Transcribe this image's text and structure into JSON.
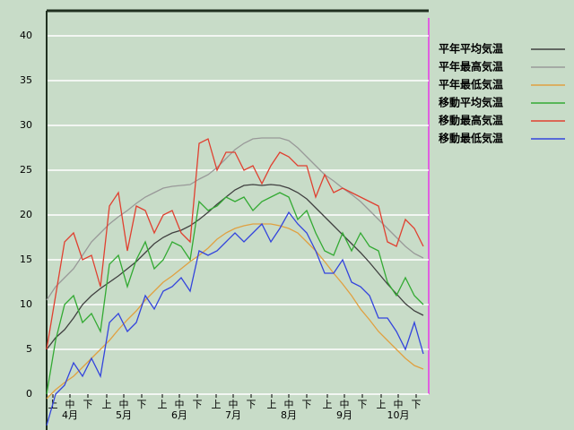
{
  "chart_data": {
    "type": "line",
    "x": [
      0,
      5,
      10,
      15,
      20,
      25,
      30,
      35,
      40,
      45,
      50,
      55,
      60,
      65,
      70,
      75,
      80,
      85,
      90,
      95,
      100,
      105,
      110,
      115,
      120,
      125,
      130,
      135,
      140,
      145,
      150,
      155,
      160,
      165,
      170,
      175,
      180,
      185,
      190,
      195,
      200,
      205,
      210
    ],
    "xlim": [
      0,
      213
    ],
    "xticks": [
      {
        "value": 3.5,
        "label": "上"
      },
      {
        "value": 13,
        "label": "中"
      },
      {
        "value": 23,
        "label": "下"
      },
      {
        "value": 33.5,
        "label": "上"
      },
      {
        "value": 43,
        "label": "中"
      },
      {
        "value": 53,
        "label": "下"
      },
      {
        "value": 64.5,
        "label": "上"
      },
      {
        "value": 74,
        "label": "中"
      },
      {
        "value": 84,
        "label": "下"
      },
      {
        "value": 94.5,
        "label": "上"
      },
      {
        "value": 104,
        "label": "中"
      },
      {
        "value": 114,
        "label": "下"
      },
      {
        "value": 125.5,
        "label": "上"
      },
      {
        "value": 135,
        "label": "中"
      },
      {
        "value": 145,
        "label": "下"
      },
      {
        "value": 156.5,
        "label": "上"
      },
      {
        "value": 166,
        "label": "中"
      },
      {
        "value": 176,
        "label": "下"
      },
      {
        "value": 186.5,
        "label": "上"
      },
      {
        "value": 196,
        "label": "中"
      },
      {
        "value": 206,
        "label": "下"
      }
    ],
    "month_ticks": [
      {
        "value": 13,
        "label": "4月"
      },
      {
        "value": 43,
        "label": "5月"
      },
      {
        "value": 74,
        "label": "6月"
      },
      {
        "value": 104,
        "label": "7月"
      },
      {
        "value": 135,
        "label": "8月"
      },
      {
        "value": 166,
        "label": "9月"
      },
      {
        "value": 196,
        "label": "10月"
      }
    ],
    "ylim": [
      -4,
      42.8
    ],
    "yticks": [
      0,
      5,
      10,
      15,
      20,
      25,
      30,
      35,
      40
    ],
    "grid": true,
    "series": [
      {
        "name": "平年平均気温",
        "color": "#404040",
        "values": [
          5,
          6.3,
          7.2,
          8.5,
          10,
          11,
          11.8,
          12.5,
          13.2,
          14,
          14.8,
          15.8,
          16.8,
          17.5,
          18,
          18.3,
          18.8,
          19.5,
          20.3,
          21.2,
          22,
          22.8,
          23.3,
          23.4,
          23.3,
          23.4,
          23.3,
          23,
          22.5,
          21.8,
          20.8,
          19.8,
          18.8,
          17.8,
          16.8,
          15.8,
          14.7,
          13.5,
          12.3,
          11.2,
          10.1,
          9.3,
          8.8
        ]
      },
      {
        "name": "平年最高気温",
        "color": "#999999",
        "values": [
          10.5,
          12,
          13,
          14,
          15.5,
          17,
          18,
          19,
          19.8,
          20.5,
          21.3,
          22,
          22.5,
          23,
          23.2,
          23.3,
          23.4,
          24,
          24.5,
          25.3,
          26.3,
          27.3,
          28,
          28.5,
          28.6,
          28.6,
          28.6,
          28.3,
          27.5,
          26.5,
          25.5,
          24.5,
          23.8,
          23,
          22.3,
          21.5,
          20.5,
          19.5,
          18.5,
          17.5,
          16.5,
          15.7,
          15.2
        ]
      },
      {
        "name": "平年最低気温",
        "color": "#e0a040",
        "values": [
          -0.5,
          0.5,
          1.3,
          2,
          3,
          4,
          5,
          6,
          7.2,
          8.3,
          9.3,
          10.5,
          11.5,
          12.5,
          13.2,
          14,
          14.8,
          15.5,
          16.3,
          17.3,
          18,
          18.5,
          18.8,
          19,
          19,
          19,
          18.8,
          18.5,
          18,
          17,
          16,
          14.8,
          13.5,
          12.3,
          11,
          9.5,
          8.3,
          7,
          6,
          5,
          4,
          3.2,
          2.8
        ]
      },
      {
        "name": "移動平均気温",
        "color": "#33aa33",
        "values": [
          0,
          6,
          10,
          11,
          8,
          9,
          7,
          14.5,
          15.5,
          12,
          15,
          17,
          14,
          15,
          17,
          16.5,
          15,
          21.5,
          20.5,
          21,
          22,
          21.5,
          22,
          20.5,
          21.5,
          22,
          22.5,
          22,
          19.5,
          20.5,
          18,
          16,
          15.5,
          18,
          16,
          18,
          16.5,
          16,
          12.5,
          11,
          13,
          11,
          10
        ]
      },
      {
        "name": "移動最高気温",
        "color": "#e04030",
        "values": [
          5,
          11,
          17,
          18,
          15,
          15.5,
          12,
          21,
          22.5,
          16,
          21,
          20.5,
          18,
          20,
          20.5,
          18,
          17,
          28,
          28.5,
          25,
          27,
          27,
          25,
          25.5,
          23.5,
          25.5,
          27,
          26.5,
          25.5,
          25.5,
          22,
          24.5,
          22.5,
          23,
          22.5,
          22,
          21.5,
          21,
          17,
          16.5,
          19.5,
          18.5,
          16.5
        ]
      },
      {
        "name": "移動最低気温",
        "color": "#3344dd",
        "values": [
          -3.5,
          0,
          1,
          3.5,
          2,
          4,
          2,
          8,
          9,
          7,
          8,
          11,
          9.5,
          11.5,
          12,
          13,
          11.5,
          16,
          15.5,
          16,
          17,
          18,
          17,
          18,
          19,
          17,
          18.5,
          20.3,
          19,
          18,
          16,
          13.5,
          13.5,
          15,
          12.5,
          12,
          11,
          8.5,
          8.5,
          7,
          5,
          8,
          4.5
        ]
      }
    ]
  }
}
